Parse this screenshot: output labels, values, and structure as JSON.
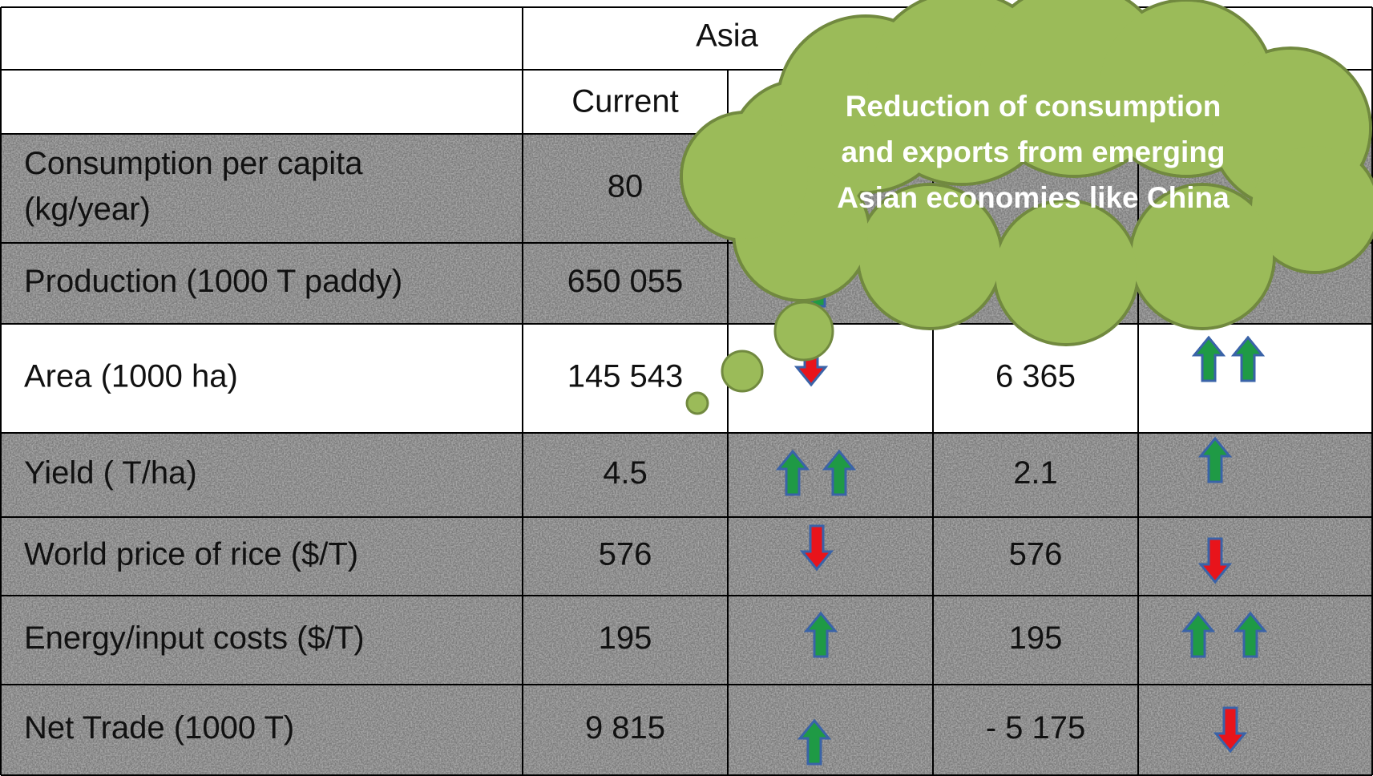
{
  "header": {
    "region": "Asia",
    "column": "Current"
  },
  "rows": [
    {
      "label": [
        "Consumption per capita",
        "(kg/year)"
      ],
      "current": [
        "80"
      ]
    },
    {
      "label": [
        "Production (1000 T paddy)"
      ],
      "current": [
        "650 055"
      ]
    },
    {
      "label": [
        "Area (1000 ha)"
      ],
      "current": [
        "145 543",
        "6 365"
      ]
    },
    {
      "label": [
        "Yield ( T/ha)"
      ],
      "current": [
        "4.5",
        "2.1"
      ]
    },
    {
      "label": [
        "World price of rice ($/T)"
      ],
      "current": [
        "576",
        "576"
      ]
    },
    {
      "label": [
        "Energy/input costs ($/T)"
      ],
      "current": [
        "195",
        "195"
      ]
    },
    {
      "label": [
        "Net Trade (1000 T)"
      ],
      "current": [
        "9 815",
        "- 5 175"
      ]
    }
  ],
  "callout": {
    "lines": [
      "Reduction of consumption",
      "and exports from emerging",
      "Asian economies like China"
    ]
  }
}
